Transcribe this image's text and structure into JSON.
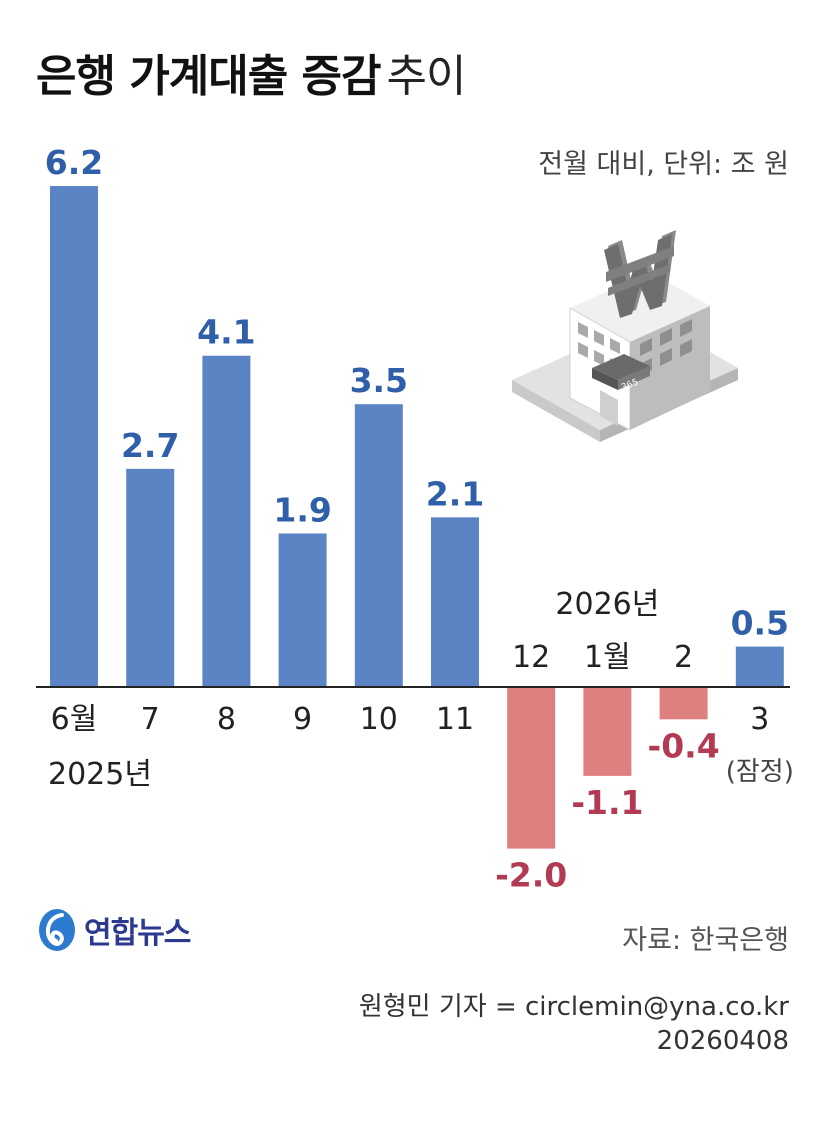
{
  "header": {
    "title_bold": "은행 가계대출 증감",
    "title_light": "추이",
    "unit_note": "전월 대비, 단위: 조 원"
  },
  "chart_data": {
    "type": "bar",
    "title": "은행 가계대출 증감 추이",
    "ylabel": "",
    "xlabel": "",
    "categories": [
      "6월",
      "7",
      "8",
      "9",
      "10",
      "11",
      "12",
      "1월",
      "2",
      "3"
    ],
    "values": [
      6.2,
      2.7,
      4.1,
      1.9,
      3.5,
      2.1,
      -2.0,
      -1.1,
      -0.4,
      0.5
    ],
    "value_labels": [
      "6.2",
      "2.7",
      "4.1",
      "1.9",
      "3.5",
      "2.1",
      "-2.0",
      "-1.1",
      "-0.4",
      "0.5"
    ],
    "year_labels": [
      "2025년",
      "2026년"
    ],
    "provisional_note": "(잠정)",
    "ylim": [
      -2.0,
      6.2
    ],
    "grid": false,
    "colors": {
      "positive": "#5b84c4",
      "negative": "#de7f80",
      "positive_label": "#2f5fa8",
      "negative_label": "#b23a52"
    }
  },
  "footer": {
    "logo_text": "연합뉴스",
    "source": "자료: 한국은행",
    "byline": "원형민 기자 = circlemin@yna.co.kr",
    "date_code": "20260408"
  },
  "illustration": {
    "icon": "bank-building-won-icon",
    "sign_text": "365"
  }
}
